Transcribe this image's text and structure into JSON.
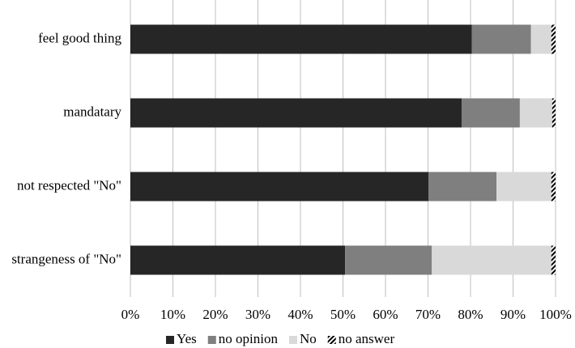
{
  "chart_data": {
    "type": "stacked-bar-horizontal",
    "categories": [
      "feel good thing",
      "mandatary",
      "not respected \"No\"",
      "strangeness of \"No\""
    ],
    "series": [
      {
        "name": "Yes",
        "color": "#262626",
        "values": [
          80.3,
          77.9,
          70.1,
          50.5
        ]
      },
      {
        "name": "no opinion",
        "color": "#7f7f7f",
        "values": [
          13.9,
          13.7,
          16.0,
          20.4
        ]
      },
      {
        "name": "No",
        "color": "#d9d9d9",
        "values": [
          4.8,
          7.6,
          12.9,
          28.1
        ]
      },
      {
        "name": "no answer",
        "color": "#000000",
        "fill_pattern": "diagonal-hatch",
        "values": [
          1.0,
          0.8,
          1.0,
          1.0
        ]
      }
    ],
    "xlim": [
      0,
      100
    ],
    "xticks": [
      {
        "value": 0,
        "label": "0%"
      },
      {
        "value": 10,
        "label": "10%"
      },
      {
        "value": 20,
        "label": "20%"
      },
      {
        "value": 30,
        "label": "30%"
      },
      {
        "value": 40,
        "label": "40%"
      },
      {
        "value": 50,
        "label": "50%"
      },
      {
        "value": 60,
        "label": "60%"
      },
      {
        "value": 70,
        "label": "70%"
      },
      {
        "value": 80,
        "label": "80%"
      },
      {
        "value": 90,
        "label": "90%"
      },
      {
        "value": 100,
        "label": "100%"
      }
    ],
    "grid": true,
    "legend": "bottom"
  }
}
